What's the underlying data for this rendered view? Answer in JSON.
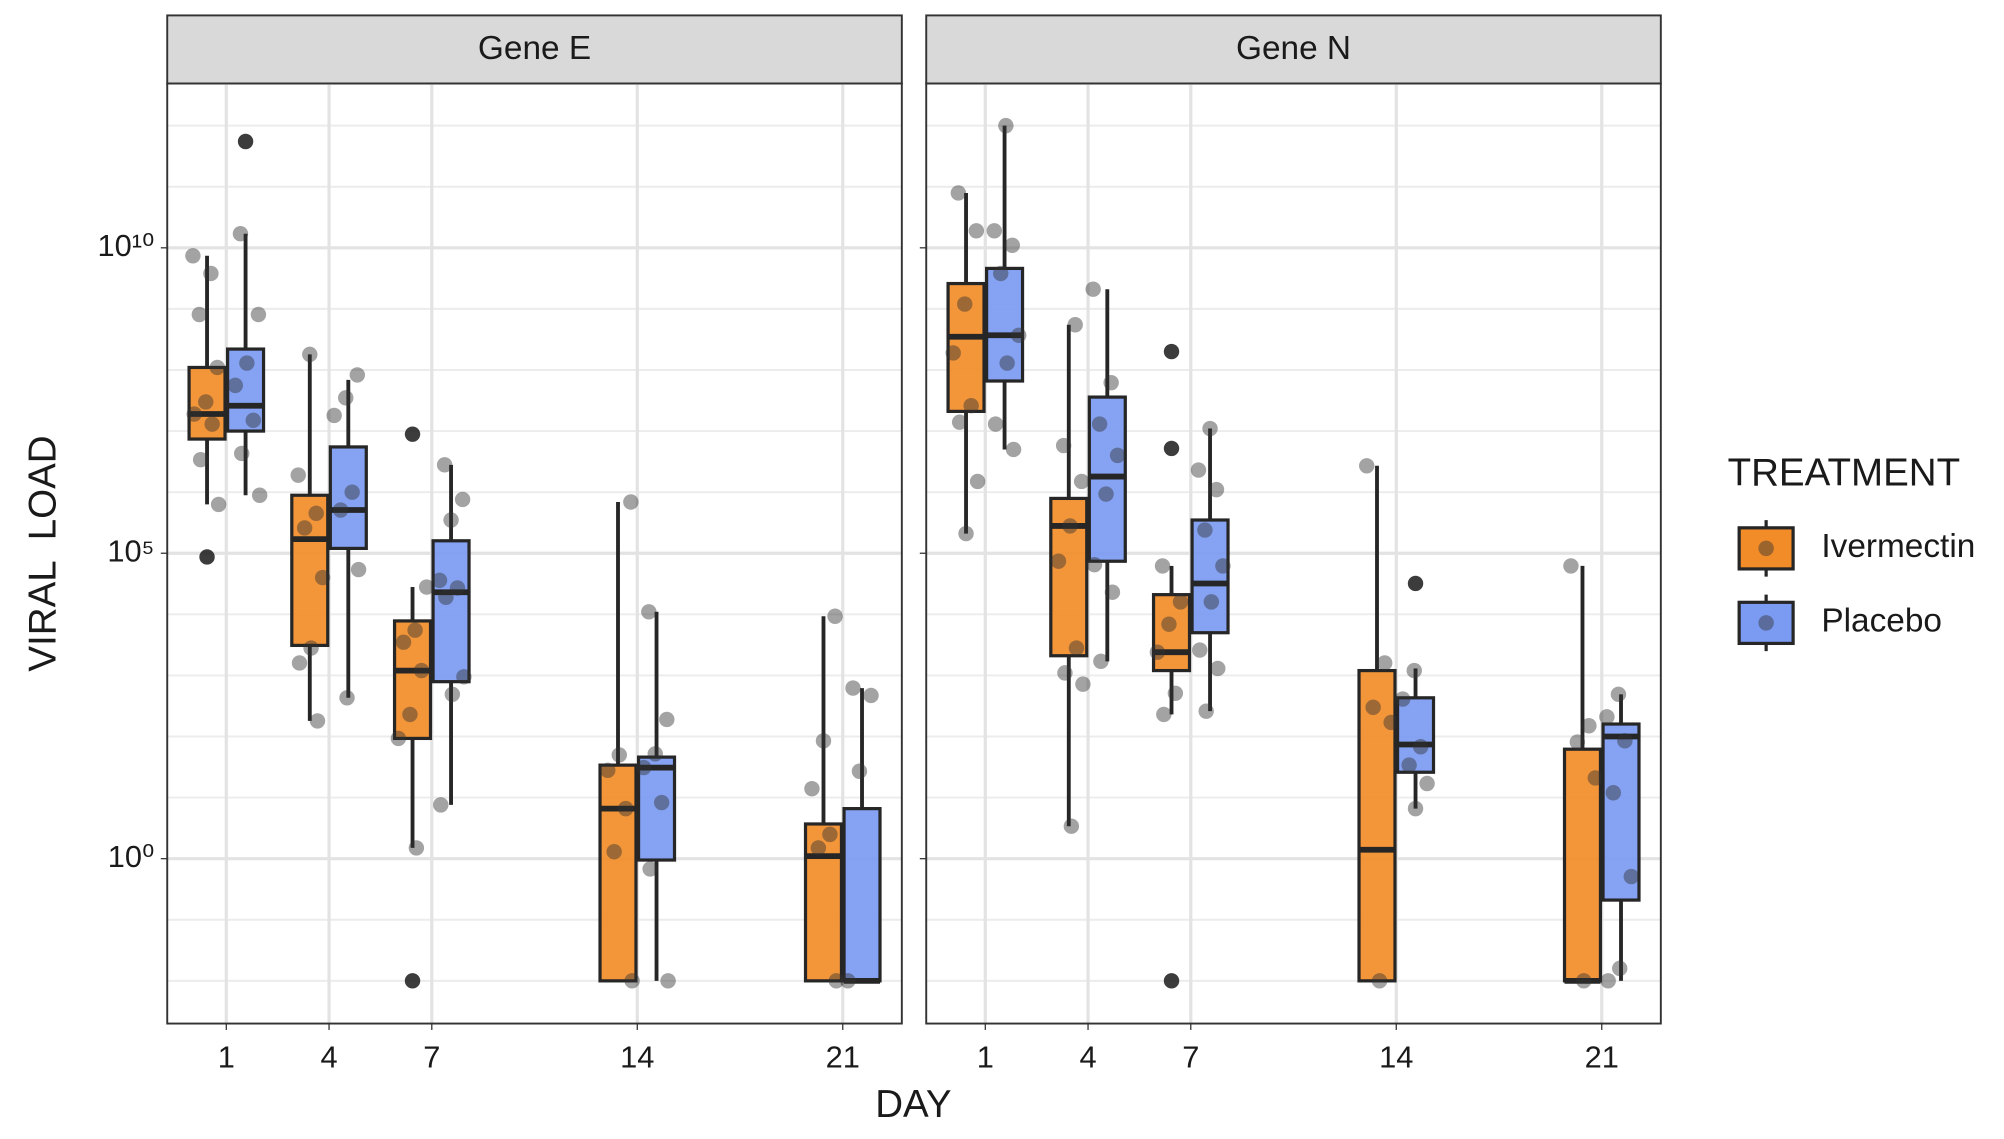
{
  "chart_data": [
    {
      "type": "box",
      "title": "Gene E",
      "log": true,
      "grid": true,
      "categories": [
        "1",
        "4",
        "7",
        null,
        "14",
        null,
        "21"
      ],
      "ylim": [
        0.002,
        4900000000000.0
      ],
      "yticks": [
        {
          "value": 1,
          "label": "10⁰"
        },
        {
          "value": 100000,
          "label": "10⁵"
        },
        {
          "value": 10000000000,
          "label": "10¹⁰"
        }
      ],
      "yminor": [
        0.01,
        0.1,
        10,
        100,
        1000,
        10000,
        1000000,
        10000000,
        100000000,
        1000000000,
        100000000000,
        1000000000000
      ],
      "series": [
        {
          "name": "Ivermectin",
          "color": "#f28c28",
          "boxes": [
            {
              "min": 630000,
              "q1": 7400000,
              "median": 19000000,
              "q3": 110000000,
              "max": 7400000000,
              "outliers": [
                87000
              ],
              "points": [
                7400000000,
                3800000000,
                810000000,
                110000000,
                30000000,
                19000000,
                13000000,
                3400000,
                630000
              ]
            },
            {
              "min": 180,
              "q1": 3100,
              "median": 170000,
              "q3": 890000,
              "max": 180000000,
              "outliers": [],
              "points": [
                180000000,
                1900000,
                450000,
                260000,
                40000,
                2800,
                1600,
                180
              ]
            },
            {
              "min": 1.5,
              "q1": 93,
              "median": 1200,
              "q3": 7800,
              "max": 28000,
              "outliers": [
                8900000,
                0.01
              ],
              "points": [
                28000,
                5500,
                3500,
                1200,
                230,
                93,
                1.5
              ]
            },
            null,
            {
              "min": 0.01,
              "q1": 0.01,
              "median": 6.6,
              "q3": 34,
              "max": 690000,
              "outliers": [],
              "points": [
                690000,
                50,
                28,
                6.6,
                1.3,
                0.01
              ]
            },
            null,
            {
              "min": 0.01,
              "q1": 0.01,
              "median": 1.1,
              "q3": 3.7,
              "max": 9300,
              "outliers": [],
              "points": [
                9300,
                85,
                14,
                2.5,
                1.5,
                0.01
              ]
            }
          ]
        },
        {
          "name": "Placebo",
          "color": "#7b9af2",
          "boxes": [
            {
              "min": 890000,
              "q1": 10000000,
              "median": 26000000,
              "q3": 220000000,
              "max": 17000000000,
              "outliers": [
                550000000000
              ],
              "points": [
                17000000000,
                810000000,
                130000000,
                56000000,
                15000000,
                4300000,
                890000
              ]
            },
            {
              "min": 430,
              "q1": 120000,
              "median": 510000,
              "q3": 5500000,
              "max": 69000000,
              "outliers": [],
              "points": [
                83000000,
                35000000,
                18000000,
                1000000,
                510000,
                54000,
                430
              ]
            },
            {
              "min": 7.6,
              "q1": 790,
              "median": 23000,
              "q3": 160000,
              "max": 2800000,
              "outliers": [],
              "points": [
                2800000,
                760000,
                350000,
                36000,
                27000,
                19000,
                950,
                490,
                7.6
              ]
            },
            null,
            {
              "min": 0.01,
              "q1": 0.95,
              "median": 31,
              "q3": 46,
              "max": 11000,
              "outliers": [],
              "points": [
                11000,
                190,
                52,
                31,
                8.3,
                0.68,
                0.01
              ]
            },
            null,
            {
              "min": 0.01,
              "q1": 0.01,
              "median": 0.01,
              "q3": 6.6,
              "max": 620,
              "outliers": [],
              "points": [
                620,
                470,
                27,
                0.01
              ]
            }
          ]
        }
      ]
    },
    {
      "type": "box",
      "title": "Gene N",
      "log": true,
      "grid": true,
      "categories": [
        "1",
        "4",
        "7",
        null,
        "14",
        null,
        "21"
      ],
      "ylim": [
        0.002,
        4900000000000.0
      ],
      "yticks": [
        {
          "value": 1,
          "label": "10⁰"
        },
        {
          "value": 100000,
          "label": "10⁵"
        },
        {
          "value": 10000000000,
          "label": "10¹⁰"
        }
      ],
      "yminor": [
        0.01,
        0.1,
        10,
        100,
        1000,
        10000,
        1000000,
        10000000,
        100000000,
        1000000000,
        100000000000,
        1000000000000
      ],
      "series": [
        {
          "name": "Ivermectin",
          "color": "#f28c28",
          "boxes": [
            {
              "min": 210000,
              "q1": 21000000,
              "median": 350000000,
              "q3": 2600000000,
              "max": 79000000000,
              "outliers": [],
              "points": [
                79000000000,
                19000000000,
                1200000000,
                190000000,
                26000000,
                14000000,
                1500000,
                210000
              ]
            },
            {
              "min": 3.4,
              "q1": 2100,
              "median": 280000,
              "q3": 790000,
              "max": 550000000,
              "outliers": [],
              "points": [
                550000000,
                5800000,
                1500000,
                280000,
                74000,
                2800,
                1100,
                720,
                3.4
              ]
            },
            {
              "min": 230,
              "q1": 1200,
              "median": 2400,
              "q3": 21000,
              "max": 62000,
              "outliers": [
                200000000,
                5200000,
                0.01
              ],
              "points": [
                62000,
                16000,
                6900,
                2400,
                510,
                230
              ]
            },
            null,
            {
              "min": 0.01,
              "q1": 0.01,
              "median": 1.4,
              "q3": 1200,
              "max": 2700000,
              "outliers": [],
              "points": [
                2700000,
                1600,
                300,
                170,
                0.01
              ]
            },
            null,
            {
              "min": 0.01,
              "q1": 0.01,
              "median": 0.01,
              "q3": 62,
              "max": 62000,
              "outliers": [],
              "points": [
                62000,
                150,
                81,
                21,
                0.01
              ]
            }
          ]
        },
        {
          "name": "Placebo",
          "color": "#7b9af2",
          "boxes": [
            {
              "min": 5000000,
              "q1": 66000000,
              "median": 370000000,
              "q3": 4600000000,
              "max": 1000000000000,
              "outliers": [],
              "points": [
                1000000000000,
                19000000000,
                11000000000,
                3800000000,
                370000000,
                130000000,
                13000000,
                5000000
              ]
            },
            {
              "min": 1700,
              "q1": 74000,
              "median": 1800000,
              "q3": 36000000,
              "max": 2100000000,
              "outliers": [],
              "points": [
                2100000000,
                62000000,
                13000000,
                4000000,
                930000,
                65000,
                23000,
                1700
              ]
            },
            {
              "min": 260,
              "q1": 5000,
              "median": 32000,
              "q3": 350000,
              "max": 11000000,
              "outliers": [],
              "points": [
                11000000,
                2300000,
                1100000,
                240000,
                62000,
                16000,
                2600,
                1300,
                260
              ]
            },
            null,
            {
              "min": 6.6,
              "q1": 26,
              "median": 74,
              "q3": 430,
              "max": 1300,
              "outliers": [
                32000
              ],
              "points": [
                1200,
                410,
                68,
                34,
                17,
                6.6
              ]
            },
            null,
            {
              "min": 0.01,
              "q1": 0.21,
              "median": 100,
              "q3": 160,
              "max": 490,
              "outliers": [],
              "points": [
                490,
                210,
                85,
                12,
                0.51,
                0.016,
                0.01
              ]
            }
          ]
        }
      ]
    }
  ],
  "axis_labels": {
    "x": "DAY",
    "y": "VIRAL  LOAD"
  },
  "legend": {
    "title": "TREATMENT"
  }
}
